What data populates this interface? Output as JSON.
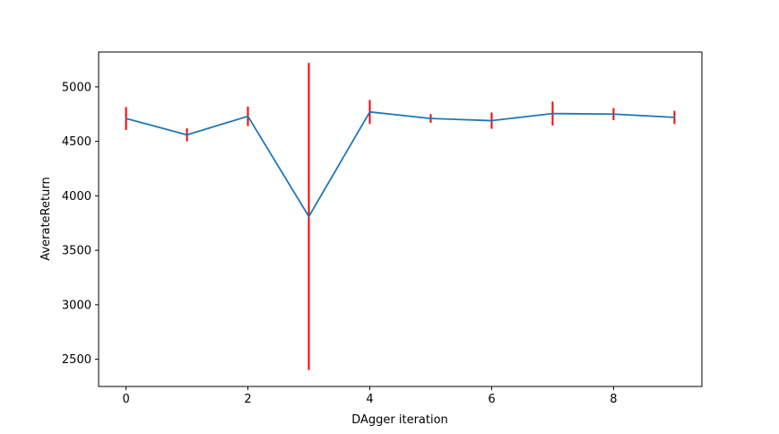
{
  "chart_data": {
    "type": "line",
    "title": "",
    "xlabel": "DAgger iteration",
    "ylabel": "AverateReturn",
    "xlim": [
      -0.45,
      9.45
    ],
    "ylim": [
      2250,
      5320
    ],
    "xticks": [
      0,
      2,
      4,
      6,
      8
    ],
    "yticks": [
      2500,
      3000,
      3500,
      4000,
      4500,
      5000
    ],
    "grid": false,
    "legend": "none",
    "series": [
      {
        "x": [
          0,
          1,
          2,
          3,
          4,
          5,
          6,
          7,
          8,
          9
        ],
        "values": [
          4710,
          4560,
          4730,
          3810,
          4770,
          4710,
          4690,
          4755,
          4750,
          4720
        ],
        "error": [
          105,
          60,
          90,
          1410,
          110,
          40,
          75,
          110,
          55,
          60
        ]
      }
    ],
    "colors": {
      "line": "#1f77b4",
      "errorbar": "#ff0000",
      "axes": "#000000"
    }
  }
}
